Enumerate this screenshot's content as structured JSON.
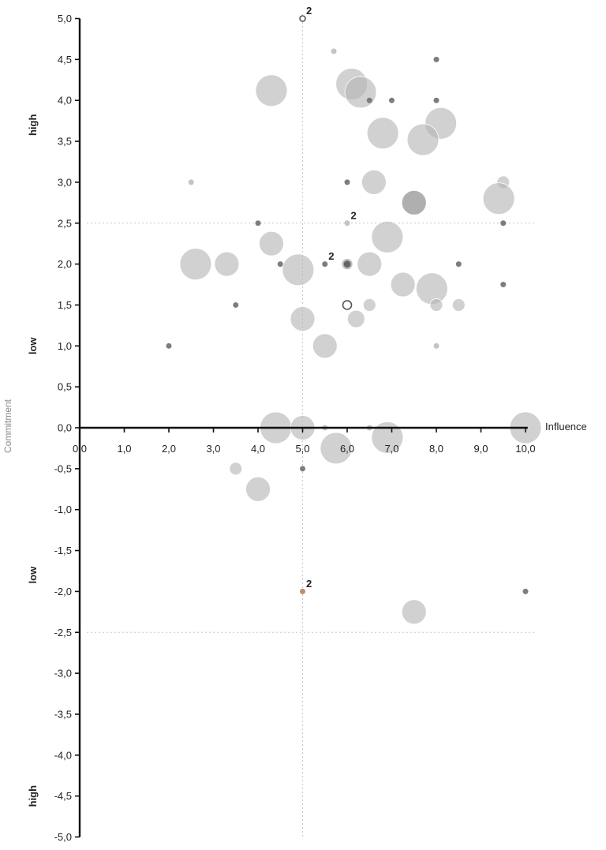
{
  "chart_data": {
    "type": "scatter",
    "xlabel": "Influence",
    "ylabel": "Commitment",
    "xlim": [
      0,
      10
    ],
    "ylim": [
      -5,
      5
    ],
    "x_ticks": [
      "0,0",
      "1,0",
      "2,0",
      "3,0",
      "4,0",
      "5,0",
      "6,0",
      "7,0",
      "8,0",
      "9,0",
      "10,0"
    ],
    "y_ticks": [
      "5,0",
      "4,5",
      "4,0",
      "3,5",
      "3,0",
      "2,5",
      "2,0",
      "1,5",
      "1,0",
      "0,5",
      "0,0",
      "-0,5",
      "-1,0",
      "-1,5",
      "-2,0",
      "-2,5",
      "-3,0",
      "-3,5",
      "-4,0",
      "-4,5",
      "-5,0"
    ],
    "side_labels": [
      {
        "text": "high",
        "y": 3.7
      },
      {
        "text": "low",
        "y": 1.0
      },
      {
        "text": "low",
        "y": -1.8
      },
      {
        "text": "high",
        "y": -4.5
      }
    ],
    "reference_lines": {
      "x": [
        5.0
      ],
      "y": [
        2.5,
        -2.5
      ]
    },
    "colors": {
      "bubble": "#b5b5b5",
      "bubble_dark": "#7a7a7a",
      "dot": "#7d7d7d",
      "dot_light": "#c4c4c4",
      "orange": "#c08a6a",
      "guide": "#c8c8c8"
    },
    "points": [
      {
        "x": 5.0,
        "y": 5.0,
        "size": 1,
        "style": "ring",
        "label": "2"
      },
      {
        "x": 5.7,
        "y": 4.6,
        "size": 1,
        "style": "dot-light"
      },
      {
        "x": 8.0,
        "y": 4.5,
        "size": 1,
        "style": "dot"
      },
      {
        "x": 4.3,
        "y": 4.12,
        "size": 8,
        "style": "bubble"
      },
      {
        "x": 6.1,
        "y": 4.2,
        "size": 8,
        "style": "bubble"
      },
      {
        "x": 6.3,
        "y": 4.1,
        "size": 8,
        "style": "bubble"
      },
      {
        "x": 6.5,
        "y": 4.0,
        "size": 1,
        "style": "dot"
      },
      {
        "x": 7.0,
        "y": 4.0,
        "size": 1,
        "style": "dot"
      },
      {
        "x": 8.0,
        "y": 4.0,
        "size": 1,
        "style": "dot"
      },
      {
        "x": 8.1,
        "y": 3.72,
        "size": 8,
        "style": "bubble"
      },
      {
        "x": 6.8,
        "y": 3.6,
        "size": 8,
        "style": "bubble"
      },
      {
        "x": 7.7,
        "y": 3.52,
        "size": 8,
        "style": "bubble"
      },
      {
        "x": 2.5,
        "y": 3.0,
        "size": 1,
        "style": "dot-light"
      },
      {
        "x": 6.0,
        "y": 3.0,
        "size": 1,
        "style": "dot"
      },
      {
        "x": 6.6,
        "y": 3.0,
        "size": 6,
        "style": "bubble"
      },
      {
        "x": 9.5,
        "y": 3.0,
        "size": 3,
        "style": "bubble"
      },
      {
        "x": 9.4,
        "y": 2.8,
        "size": 8,
        "style": "bubble"
      },
      {
        "x": 7.5,
        "y": 2.75,
        "size": 6,
        "style": "bubble-dark"
      },
      {
        "x": 4.0,
        "y": 2.5,
        "size": 1,
        "style": "dot"
      },
      {
        "x": 6.0,
        "y": 2.5,
        "size": 1,
        "style": "dot-light",
        "label": "2"
      },
      {
        "x": 9.5,
        "y": 2.5,
        "size": 1,
        "style": "dot"
      },
      {
        "x": 6.9,
        "y": 2.33,
        "size": 8,
        "style": "bubble"
      },
      {
        "x": 4.3,
        "y": 2.25,
        "size": 6,
        "style": "bubble"
      },
      {
        "x": 2.6,
        "y": 2.0,
        "size": 8,
        "style": "bubble"
      },
      {
        "x": 3.3,
        "y": 2.0,
        "size": 6,
        "style": "bubble"
      },
      {
        "x": 4.5,
        "y": 2.0,
        "size": 1,
        "style": "dot"
      },
      {
        "x": 4.9,
        "y": 1.93,
        "size": 8,
        "style": "bubble"
      },
      {
        "x": 5.5,
        "y": 2.0,
        "size": 1,
        "style": "dot",
        "label": "2"
      },
      {
        "x": 6.0,
        "y": 2.0,
        "size": 2,
        "style": "ring-filled"
      },
      {
        "x": 6.5,
        "y": 2.0,
        "size": 6,
        "style": "bubble"
      },
      {
        "x": 8.5,
        "y": 2.0,
        "size": 1,
        "style": "dot"
      },
      {
        "x": 7.25,
        "y": 1.75,
        "size": 6,
        "style": "bubble"
      },
      {
        "x": 7.9,
        "y": 1.7,
        "size": 8,
        "style": "bubble"
      },
      {
        "x": 9.5,
        "y": 1.75,
        "size": 1,
        "style": "dot"
      },
      {
        "x": 3.5,
        "y": 1.5,
        "size": 1,
        "style": "dot"
      },
      {
        "x": 6.0,
        "y": 1.5,
        "size": 2,
        "style": "ring"
      },
      {
        "x": 6.5,
        "y": 1.5,
        "size": 3,
        "style": "bubble"
      },
      {
        "x": 8.0,
        "y": 1.5,
        "size": 3,
        "style": "bubble"
      },
      {
        "x": 8.5,
        "y": 1.5,
        "size": 3,
        "style": "bubble"
      },
      {
        "x": 5.0,
        "y": 1.33,
        "size": 6,
        "style": "bubble"
      },
      {
        "x": 6.2,
        "y": 1.33,
        "size": 4,
        "style": "bubble"
      },
      {
        "x": 2.0,
        "y": 1.0,
        "size": 1,
        "style": "dot"
      },
      {
        "x": 5.5,
        "y": 1.0,
        "size": 6,
        "style": "bubble"
      },
      {
        "x": 8.0,
        "y": 1.0,
        "size": 1,
        "style": "dot-light"
      },
      {
        "x": 4.4,
        "y": 0.0,
        "size": 8,
        "style": "bubble"
      },
      {
        "x": 5.0,
        "y": 0.0,
        "size": 6,
        "style": "bubble"
      },
      {
        "x": 5.5,
        "y": 0.0,
        "size": 1,
        "style": "dot-light"
      },
      {
        "x": 6.5,
        "y": 0.0,
        "size": 1,
        "style": "dot-light"
      },
      {
        "x": 10.0,
        "y": 0.0,
        "size": 8,
        "style": "bubble"
      },
      {
        "x": 5.75,
        "y": -0.25,
        "size": 8,
        "style": "bubble"
      },
      {
        "x": 6.9,
        "y": -0.12,
        "size": 8,
        "style": "bubble"
      },
      {
        "x": 3.5,
        "y": -0.5,
        "size": 3,
        "style": "bubble"
      },
      {
        "x": 5.0,
        "y": -0.5,
        "size": 1,
        "style": "dot"
      },
      {
        "x": 4.0,
        "y": -0.75,
        "size": 6,
        "style": "bubble"
      },
      {
        "x": 5.0,
        "y": -2.0,
        "size": 1,
        "style": "dot-orange",
        "label": "2"
      },
      {
        "x": 10.0,
        "y": -2.0,
        "size": 1,
        "style": "dot"
      },
      {
        "x": 7.5,
        "y": -2.25,
        "size": 6,
        "style": "bubble"
      }
    ]
  }
}
